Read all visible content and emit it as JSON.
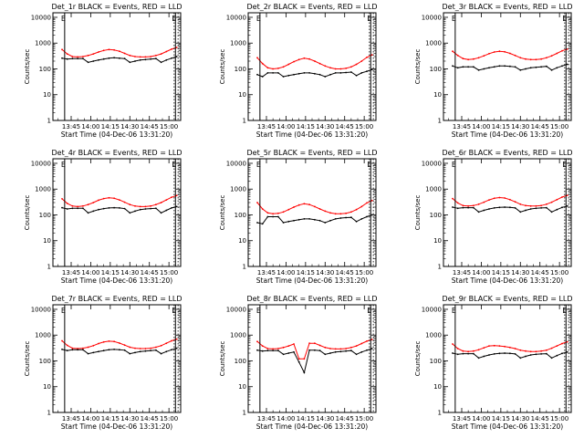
{
  "figure": {
    "ylabel": "Counts/sec",
    "xlabel": "Start Time (04-Dec-06 13:31:20)",
    "x_ticks": [
      "13:45",
      "14:00",
      "14:15",
      "14:30",
      "14:45",
      "15:00"
    ],
    "y_ticks": [
      "1",
      "10",
      "100",
      "1000",
      "10000"
    ],
    "marker_labels": {
      "start": "E",
      "end": "E"
    },
    "colors": {
      "events": "#000000",
      "lld": "#ff0000"
    }
  },
  "chart_data": [
    {
      "type": "line",
      "title": "Det_1r BLACK = Events, RED = LLD",
      "x": [
        "13:38",
        "13:42",
        "13:46",
        "13:50",
        "13:54",
        "13:58",
        "14:02",
        "14:06",
        "14:10",
        "14:14",
        "14:18",
        "14:22",
        "14:26",
        "14:30",
        "14:34",
        "14:38",
        "14:42",
        "14:46",
        "14:50",
        "14:54",
        "14:58",
        "15:02",
        "15:06"
      ],
      "xlim": [
        "13:31",
        "15:09"
      ],
      "ylim": [
        1,
        15000
      ],
      "yscale": "log",
      "vlines": [
        "13:40",
        "15:05"
      ],
      "dotted_vlines": [
        "15:04",
        "15:07"
      ],
      "series": [
        {
          "color": "#ff0000",
          "values": [
            560,
            380,
            300,
            290,
            300,
            330,
            380,
            450,
            520,
            560,
            540,
            480,
            400,
            330,
            300,
            290,
            290,
            300,
            330,
            380,
            470,
            580,
            680
          ]
        },
        {
          "color": "#000000",
          "values": [
            260,
            240,
            250,
            250,
            250,
            180,
            200,
            220,
            240,
            260,
            270,
            260,
            250,
            180,
            200,
            220,
            230,
            240,
            250,
            180,
            220,
            260,
            300
          ]
        }
      ]
    },
    {
      "type": "line",
      "title": "Det_2r BLACK = Events, RED = LLD",
      "x": [
        "13:38",
        "13:42",
        "13:46",
        "13:50",
        "13:54",
        "13:58",
        "14:02",
        "14:06",
        "14:10",
        "14:14",
        "14:18",
        "14:22",
        "14:26",
        "14:30",
        "14:34",
        "14:38",
        "14:42",
        "14:46",
        "14:50",
        "14:54",
        "14:58",
        "15:02",
        "15:06"
      ],
      "xlim": [
        "13:31",
        "15:09"
      ],
      "ylim": [
        1,
        15000
      ],
      "yscale": "log",
      "vlines": [
        "13:40",
        "15:05"
      ],
      "dotted_vlines": [
        "15:04",
        "15:07"
      ],
      "series": [
        {
          "color": "#ff0000",
          "values": [
            270,
            160,
            110,
            100,
            105,
            120,
            150,
            190,
            230,
            260,
            240,
            200,
            160,
            130,
            110,
            100,
            100,
            105,
            120,
            150,
            200,
            280,
            350
          ]
        },
        {
          "color": "#000000",
          "values": [
            60,
            50,
            70,
            70,
            70,
            50,
            55,
            60,
            65,
            70,
            70,
            65,
            60,
            50,
            60,
            70,
            70,
            72,
            75,
            55,
            70,
            80,
            95
          ]
        }
      ]
    },
    {
      "type": "line",
      "title": "Det_3r BLACK = Events, RED = LLD",
      "x": [
        "13:38",
        "13:42",
        "13:46",
        "13:50",
        "13:54",
        "13:58",
        "14:02",
        "14:06",
        "14:10",
        "14:14",
        "14:18",
        "14:22",
        "14:26",
        "14:30",
        "14:34",
        "14:38",
        "14:42",
        "14:46",
        "14:50",
        "14:54",
        "14:58",
        "15:02",
        "15:06"
      ],
      "xlim": [
        "13:31",
        "15:09"
      ],
      "ylim": [
        1,
        15000
      ],
      "yscale": "log",
      "vlines": [
        "13:40",
        "15:05"
      ],
      "dotted_vlines": [
        "15:04",
        "15:07"
      ],
      "series": [
        {
          "color": "#ff0000",
          "values": [
            480,
            330,
            250,
            230,
            240,
            270,
            320,
            390,
            450,
            480,
            460,
            400,
            330,
            270,
            240,
            230,
            230,
            240,
            270,
            320,
            400,
            500,
            580
          ]
        },
        {
          "color": "#000000",
          "values": [
            130,
            110,
            120,
            120,
            120,
            90,
            100,
            110,
            120,
            130,
            130,
            125,
            120,
            90,
            100,
            110,
            115,
            120,
            125,
            90,
            110,
            130,
            150
          ]
        }
      ]
    },
    {
      "type": "line",
      "title": "Det_4r BLACK = Events, RED = LLD",
      "x": [
        "13:38",
        "13:42",
        "13:46",
        "13:50",
        "13:54",
        "13:58",
        "14:02",
        "14:06",
        "14:10",
        "14:14",
        "14:18",
        "14:22",
        "14:26",
        "14:30",
        "14:34",
        "14:38",
        "14:42",
        "14:46",
        "14:50",
        "14:54",
        "14:58",
        "15:02",
        "15:06"
      ],
      "xlim": [
        "13:31",
        "15:09"
      ],
      "ylim": [
        1,
        15000
      ],
      "yscale": "log",
      "vlines": [
        "13:40",
        "15:05"
      ],
      "dotted_vlines": [
        "15:04",
        "15:07"
      ],
      "series": [
        {
          "color": "#ff0000",
          "values": [
            420,
            280,
            220,
            210,
            220,
            250,
            300,
            370,
            430,
            460,
            440,
            380,
            310,
            250,
            220,
            210,
            210,
            220,
            250,
            300,
            380,
            480,
            560
          ]
        },
        {
          "color": "#000000",
          "values": [
            190,
            170,
            180,
            180,
            180,
            120,
            140,
            160,
            175,
            185,
            190,
            185,
            175,
            120,
            140,
            160,
            170,
            175,
            180,
            120,
            150,
            185,
            210
          ]
        }
      ]
    },
    {
      "type": "line",
      "title": "Det_5r BLACK = Events, RED = LLD",
      "x": [
        "13:38",
        "13:42",
        "13:46",
        "13:50",
        "13:54",
        "13:58",
        "14:02",
        "14:06",
        "14:10",
        "14:14",
        "14:18",
        "14:22",
        "14:26",
        "14:30",
        "14:34",
        "14:38",
        "14:42",
        "14:46",
        "14:50",
        "14:54",
        "14:58",
        "15:02",
        "15:06"
      ],
      "xlim": [
        "13:31",
        "15:09"
      ],
      "ylim": [
        1,
        15000
      ],
      "yscale": "log",
      "vlines": [
        "13:40",
        "15:05"
      ],
      "dotted_vlines": [
        "15:04",
        "15:07"
      ],
      "series": [
        {
          "color": "#ff0000",
          "values": [
            300,
            170,
            120,
            110,
            115,
            130,
            160,
            200,
            240,
            270,
            250,
            210,
            170,
            140,
            120,
            110,
            110,
            115,
            130,
            160,
            210,
            290,
            360
          ]
        },
        {
          "color": "#000000",
          "values": [
            50,
            45,
            85,
            85,
            85,
            50,
            55,
            60,
            65,
            70,
            70,
            65,
            60,
            50,
            60,
            70,
            75,
            78,
            80,
            55,
            70,
            85,
            100
          ]
        }
      ]
    },
    {
      "type": "line",
      "title": "Det_6r BLACK = Events, RED = LLD",
      "x": [
        "13:38",
        "13:42",
        "13:46",
        "13:50",
        "13:54",
        "13:58",
        "14:02",
        "14:06",
        "14:10",
        "14:14",
        "14:18",
        "14:22",
        "14:26",
        "14:30",
        "14:34",
        "14:38",
        "14:42",
        "14:46",
        "14:50",
        "14:54",
        "14:58",
        "15:02",
        "15:06"
      ],
      "xlim": [
        "13:31",
        "15:09"
      ],
      "ylim": [
        1,
        15000
      ],
      "yscale": "log",
      "vlines": [
        "13:40",
        "15:05"
      ],
      "dotted_vlines": [
        "15:04",
        "15:07"
      ],
      "series": [
        {
          "color": "#ff0000",
          "values": [
            430,
            290,
            230,
            220,
            230,
            260,
            310,
            380,
            440,
            470,
            450,
            390,
            320,
            260,
            230,
            220,
            220,
            230,
            260,
            310,
            390,
            490,
            570
          ]
        },
        {
          "color": "#000000",
          "values": [
            200,
            180,
            190,
            190,
            190,
            130,
            150,
            170,
            185,
            195,
            200,
            195,
            185,
            130,
            150,
            170,
            180,
            185,
            190,
            130,
            160,
            195,
            220
          ]
        }
      ]
    },
    {
      "type": "line",
      "title": "Det_7r BLACK = Events, RED = LLD",
      "x": [
        "13:38",
        "13:42",
        "13:46",
        "13:50",
        "13:54",
        "13:58",
        "14:02",
        "14:06",
        "14:10",
        "14:14",
        "14:18",
        "14:22",
        "14:26",
        "14:30",
        "14:34",
        "14:38",
        "14:42",
        "14:46",
        "14:50",
        "14:54",
        "14:58",
        "15:02",
        "15:06"
      ],
      "xlim": [
        "13:31",
        "15:09"
      ],
      "ylim": [
        1,
        15000
      ],
      "yscale": "log",
      "vlines": [
        "13:40",
        "15:05"
      ],
      "dotted_vlines": [
        "15:04",
        "15:07"
      ],
      "series": [
        {
          "color": "#ff0000",
          "values": [
            600,
            400,
            310,
            300,
            310,
            340,
            390,
            470,
            540,
            580,
            560,
            490,
            410,
            340,
            310,
            300,
            300,
            310,
            340,
            390,
            480,
            600,
            700
          ]
        },
        {
          "color": "#000000",
          "values": [
            280,
            250,
            270,
            270,
            270,
            190,
            210,
            230,
            250,
            270,
            280,
            270,
            260,
            190,
            210,
            230,
            240,
            250,
            260,
            190,
            230,
            270,
            310
          ]
        }
      ]
    },
    {
      "type": "line",
      "title": "Det_8r BLACK = Events, RED = LLD",
      "x": [
        "13:38",
        "13:42",
        "13:46",
        "13:50",
        "13:54",
        "13:58",
        "14:02",
        "14:06",
        "14:10",
        "14:14",
        "14:18",
        "14:22",
        "14:26",
        "14:30",
        "14:34",
        "14:38",
        "14:42",
        "14:46",
        "14:50",
        "14:54",
        "14:58",
        "15:02",
        "15:06"
      ],
      "xlim": [
        "13:31",
        "15:09"
      ],
      "ylim": [
        1,
        15000
      ],
      "yscale": "log",
      "vlines": [
        "13:40",
        "15:05"
      ],
      "dotted_vlines": [
        "15:04",
        "15:07"
      ],
      "series": [
        {
          "color": "#ff0000",
          "values": [
            560,
            380,
            300,
            290,
            300,
            330,
            380,
            450,
            120,
            120,
            480,
            480,
            400,
            330,
            300,
            290,
            290,
            300,
            330,
            380,
            470,
            580,
            680
          ]
        },
        {
          "color": "#000000",
          "values": [
            260,
            240,
            250,
            250,
            250,
            180,
            200,
            220,
            90,
            35,
            260,
            260,
            250,
            180,
            200,
            220,
            230,
            240,
            250,
            180,
            220,
            260,
            300
          ]
        }
      ]
    },
    {
      "type": "line",
      "title": "Det_9r BLACK = Events, RED = LLD",
      "x": [
        "13:38",
        "13:42",
        "13:46",
        "13:50",
        "13:54",
        "13:58",
        "14:02",
        "14:06",
        "14:10",
        "14:14",
        "14:18",
        "14:22",
        "14:26",
        "14:30",
        "14:34",
        "14:38",
        "14:42",
        "14:46",
        "14:50",
        "14:54",
        "14:58",
        "15:02",
        "15:06"
      ],
      "xlim": [
        "13:31",
        "15:09"
      ],
      "ylim": [
        1,
        15000
      ],
      "yscale": "log",
      "vlines": [
        "13:40",
        "15:05"
      ],
      "dotted_vlines": [
        "15:04",
        "15:07"
      ],
      "series": [
        {
          "color": "#ff0000",
          "values": [
            450,
            300,
            240,
            230,
            240,
            270,
            320,
            380,
            390,
            380,
            360,
            330,
            300,
            260,
            240,
            230,
            230,
            240,
            260,
            310,
            380,
            470,
            550
          ]
        },
        {
          "color": "#000000",
          "values": [
            200,
            180,
            190,
            190,
            190,
            130,
            150,
            170,
            185,
            195,
            200,
            195,
            185,
            130,
            150,
            170,
            180,
            185,
            190,
            130,
            160,
            195,
            220
          ]
        }
      ]
    }
  ]
}
